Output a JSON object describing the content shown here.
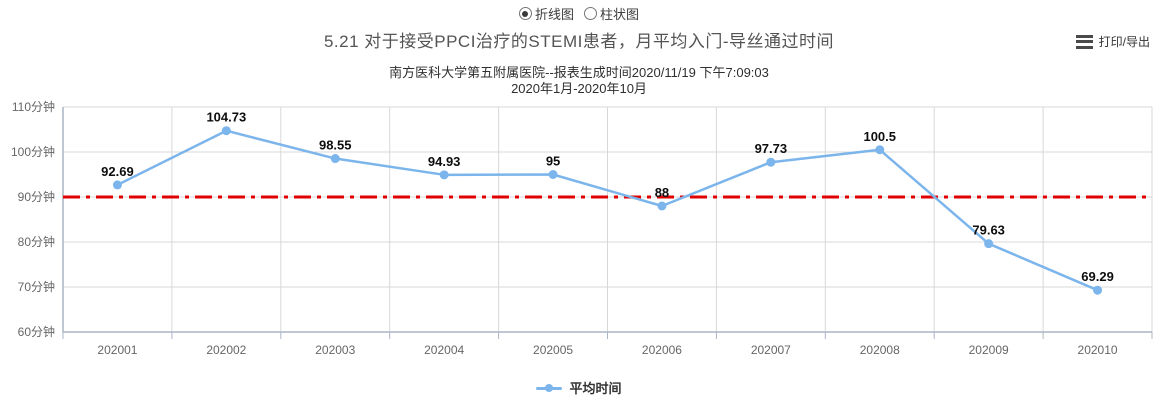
{
  "controls": {
    "chart_type_options": [
      {
        "label": "折线图",
        "selected": true
      },
      {
        "label": "柱状图",
        "selected": false
      }
    ],
    "print_export_label": "打印/导出"
  },
  "chart_data": {
    "type": "line",
    "title": "5.21 对于接受PPCI治疗的STEMI患者，月平均入门-导丝通过时间",
    "subtitle": "南方医科大学第五附属医院--报表生成时间2020/11/19 下午7:09:03",
    "date_range": "2020年1月-2020年10月",
    "categories": [
      "202001",
      "202002",
      "202003",
      "202004",
      "202005",
      "202006",
      "202007",
      "202008",
      "202009",
      "202010"
    ],
    "series": [
      {
        "name": "平均时间",
        "color": "#7cb5ec",
        "values": [
          92.69,
          104.73,
          98.55,
          94.93,
          95,
          88,
          97.73,
          100.5,
          79.63,
          69.29
        ]
      }
    ],
    "reference_line": {
      "value": 90,
      "color": "#e00000",
      "style": "dash-dot"
    },
    "ylim": [
      60,
      110
    ],
    "yticks": [
      60,
      70,
      80,
      90,
      100,
      110
    ],
    "ytick_suffix": "分钟",
    "grid": true,
    "data_labels": true,
    "legend_position": "bottom",
    "colors": {
      "grid": "#d8d8d8",
      "axis": "#aab6c4",
      "tick_text": "#666666"
    }
  }
}
